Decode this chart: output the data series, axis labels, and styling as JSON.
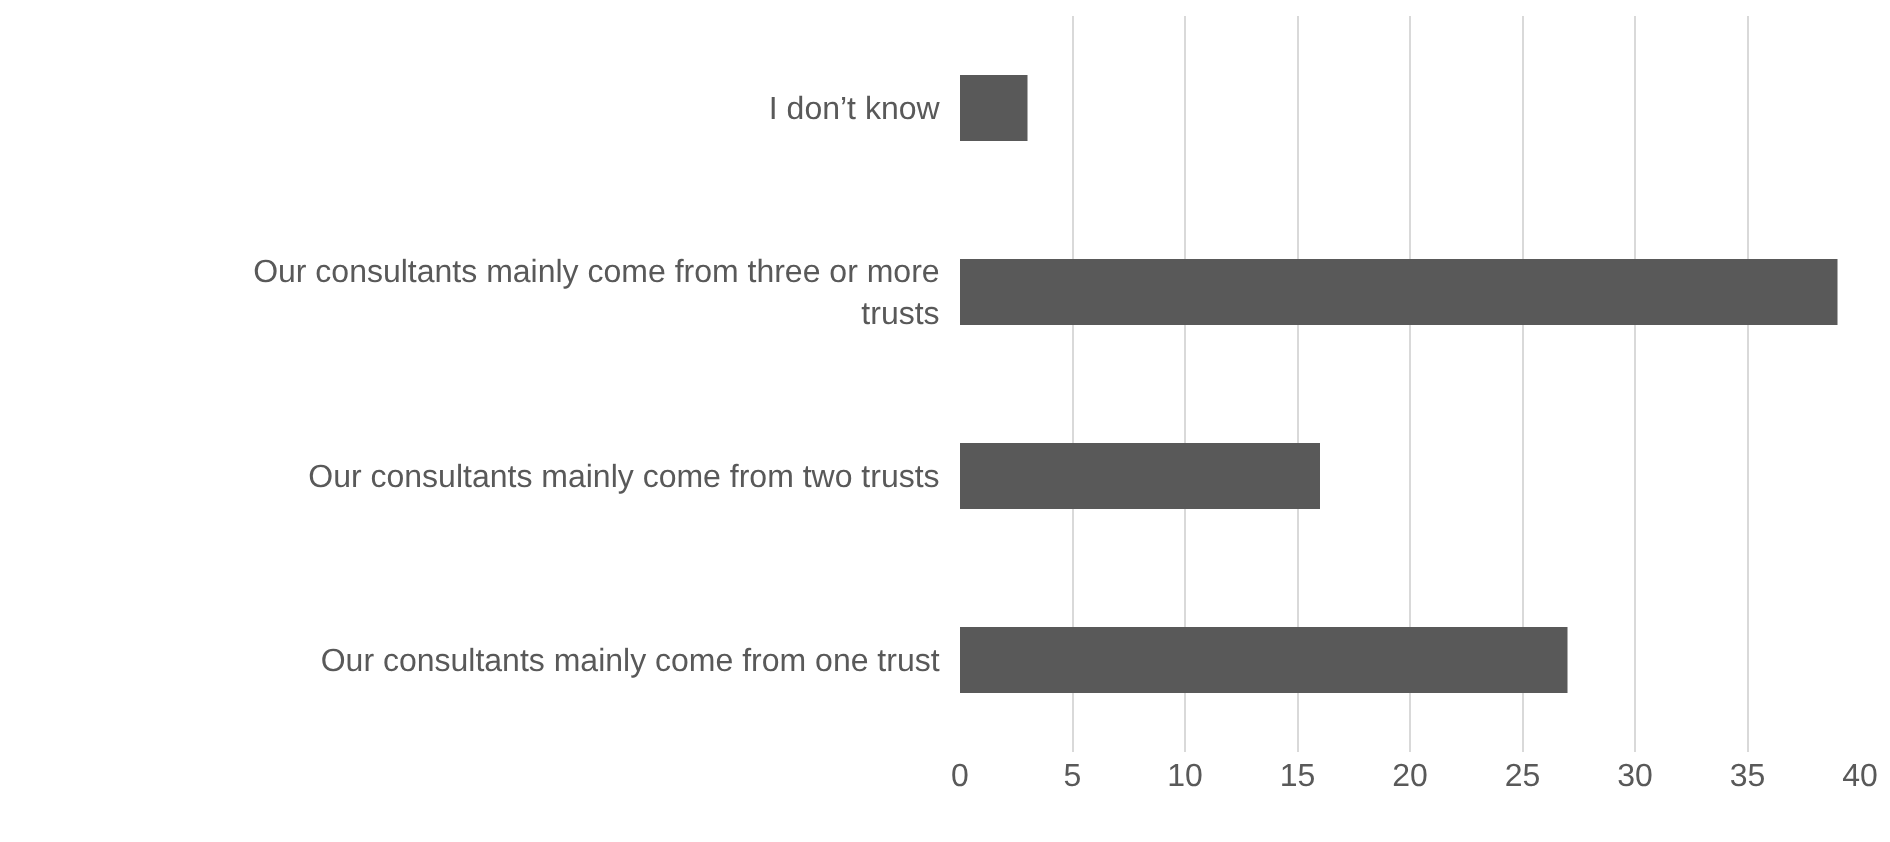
{
  "chart_data": {
    "type": "bar",
    "orientation": "horizontal",
    "categories": [
      "I don’t know",
      "Our consultants mainly come from three or more trusts",
      "Our consultants mainly come from two trusts",
      "Our consultants mainly come from one trust"
    ],
    "values": [
      3,
      39,
      16,
      27
    ],
    "color": "#595959",
    "xlim": [
      0,
      40
    ],
    "xticks": [
      0,
      5,
      10,
      15,
      20,
      25,
      30,
      35,
      40
    ],
    "grid": "x"
  }
}
